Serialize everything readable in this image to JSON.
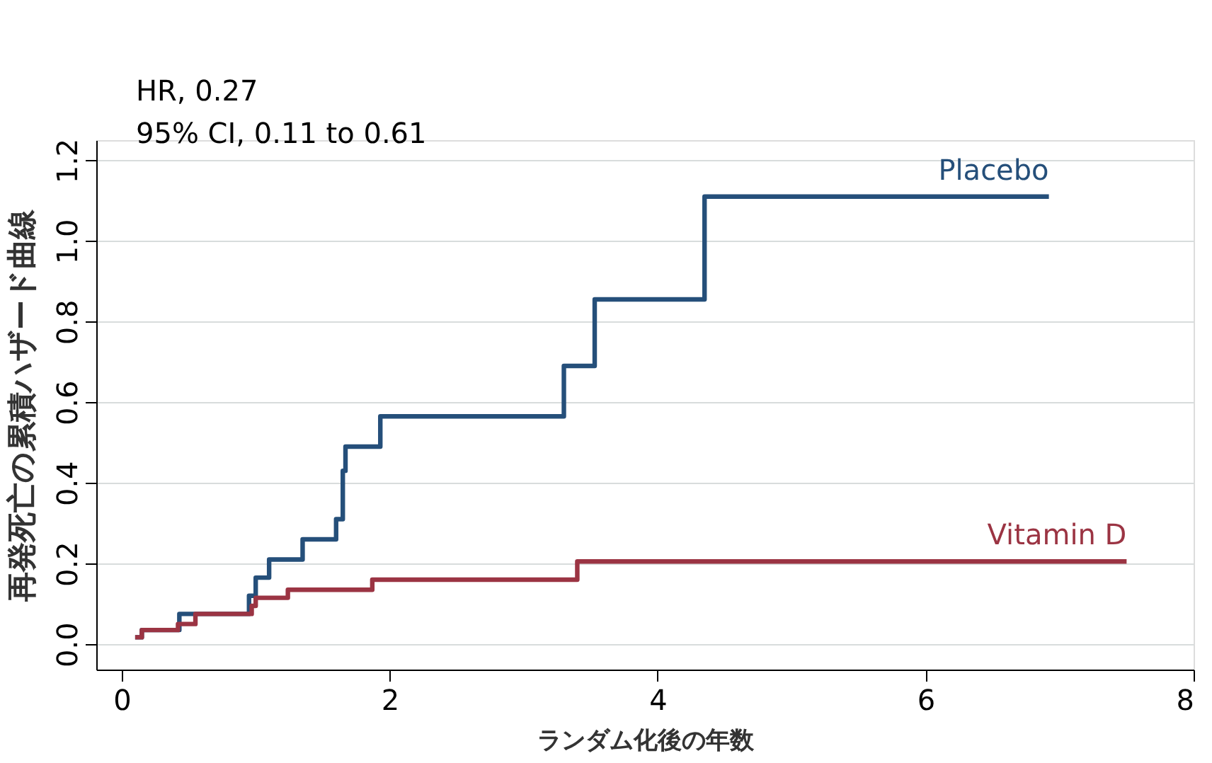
{
  "chart_data": {
    "type": "step",
    "xlabel": "ランダム化後の年数",
    "ylabel": "再発死亡の累積ハザード曲線",
    "annotations": [
      "HR, 0.27",
      "95% CI, 0.11 to 0.61"
    ],
    "xlim": [
      -0.19,
      8
    ],
    "xticks": [
      0,
      2,
      4,
      6,
      8
    ],
    "ylim": [
      -0.063,
      1.25
    ],
    "yticks": [
      {
        "value": 0,
        "label": "0.0"
      },
      {
        "value": 0.2,
        "label": "0.2"
      },
      {
        "value": 0.4,
        "label": "0.4"
      },
      {
        "value": 0.6,
        "label": "0.6"
      },
      {
        "value": 0.8,
        "label": "0.8"
      },
      {
        "value": 1.0,
        "label": "1.0"
      },
      {
        "value": 1.2,
        "label": "1.2"
      }
    ],
    "grid": "y",
    "series": [
      {
        "name": "Placebo",
        "color": "#254f7a",
        "x": [
          0.1,
          0.15,
          0.43,
          0.95,
          1.0,
          1.1,
          1.35,
          1.6,
          1.65,
          1.67,
          1.93,
          3.3,
          3.53,
          4.35,
          6.92
        ],
        "values": [
          0.017,
          0.035,
          0.075,
          0.12,
          0.165,
          0.21,
          0.26,
          0.31,
          0.43,
          0.49,
          0.565,
          0.69,
          0.855,
          1.11,
          1.11
        ]
      },
      {
        "name": "Vitamin D",
        "color": "#9b3443",
        "x": [
          0.1,
          0.15,
          0.42,
          0.55,
          0.97,
          1.0,
          1.24,
          1.87,
          3.4,
          7.5
        ],
        "values": [
          0.017,
          0.035,
          0.05,
          0.075,
          0.095,
          0.115,
          0.135,
          0.16,
          0.205,
          0.205
        ]
      }
    ]
  }
}
